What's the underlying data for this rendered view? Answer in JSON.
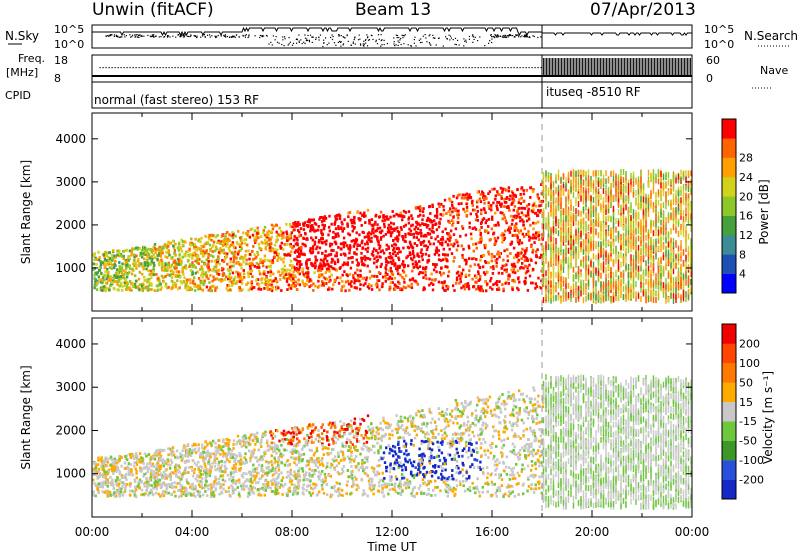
{
  "header": {
    "station": "Unwin (fitACF)",
    "beam": "Beam 13",
    "date": "07/Apr/2013"
  },
  "chart_data": [
    {
      "type": "line",
      "panel": "noise",
      "left_label": "N.Sky",
      "right_label": "N.Search",
      "left_ticks": [
        "10^5",
        "10^0"
      ],
      "right_ticks": [
        "10^5",
        "10^0"
      ]
    },
    {
      "type": "line",
      "panel": "frequency",
      "left_label": "Freq.",
      "left_units": "[MHz]",
      "left_ticks": [
        "18",
        "8"
      ],
      "right_label": "Nave",
      "right_ticks": [
        "60",
        "0"
      ]
    },
    {
      "type": "table",
      "panel": "cpid",
      "label": "CPID",
      "segments": [
        {
          "start_hour": 0,
          "end_hour": 18,
          "text": "normal (fast stereo) 153 RF"
        },
        {
          "start_hour": 18,
          "end_hour": 24,
          "text": "ituseq -8510 RF"
        }
      ]
    },
    {
      "type": "heatmap",
      "panel": "power",
      "ylabel": "Slant Range [km]",
      "ylim": [
        0,
        4600
      ],
      "yticks": [
        1000,
        2000,
        3000,
        4000
      ],
      "xlim": [
        0,
        24
      ],
      "colorbar": {
        "label": "Power [dB]",
        "ticks": [
          "4",
          "8",
          "12",
          "16",
          "20",
          "24",
          "28"
        ],
        "colors": [
          "#0000ff",
          "#1e50b4",
          "#3c8c96",
          "#46a03c",
          "#8cc828",
          "#d2d21e",
          "#ffa000",
          "#ff6400",
          "#ff0000"
        ]
      }
    },
    {
      "type": "heatmap",
      "panel": "velocity",
      "ylabel": "Slant Range [km]",
      "ylim": [
        0,
        4600
      ],
      "yticks": [
        1000,
        2000,
        3000,
        4000
      ],
      "xlim": [
        0,
        24
      ],
      "xlabel": "Time UT",
      "xticks": [
        "00:00",
        "04:00",
        "08:00",
        "12:00",
        "16:00",
        "20:00",
        "00:00"
      ],
      "colorbar": {
        "label": "Velocity [m s⁻¹]",
        "ticks": [
          "200",
          "100",
          "50",
          "15",
          "-15",
          "-50",
          "-100",
          "-200"
        ],
        "colors": [
          "#1428c8",
          "#2850dc",
          "#3c9628",
          "#6ec83c",
          "#c8c8c8",
          "#ffaa00",
          "#ff7800",
          "#ff4600",
          "#f00000"
        ]
      }
    }
  ]
}
